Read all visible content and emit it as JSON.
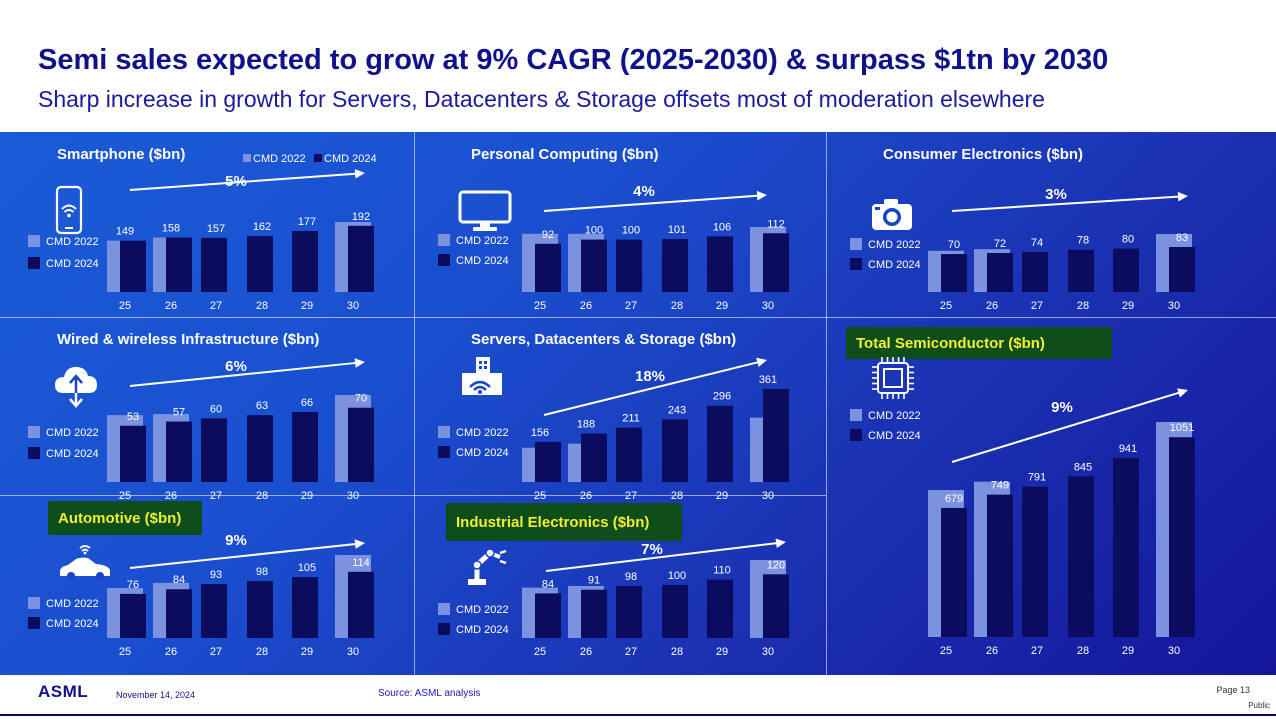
{
  "title": "Semi sales expected to grow at 9% CAGR (2025-2030) & surpass $1tn by 2030",
  "subtitle": "Sharp increase in growth for Servers, Datacenters & Storage offsets most of moderation elsewhere",
  "colors": {
    "cmd2022": "#7b92e0",
    "cmd2024": "#0b0c5e",
    "highlight": "#0d4e1a",
    "highlight_text": "#f2ee33"
  },
  "legend": {
    "cmd2022": "CMD 2022",
    "cmd2024": "CMD 2024"
  },
  "chart_data": [
    {
      "type": "bar",
      "title": "Smartphone ($bn)",
      "icon": "smartphone-icon",
      "cagr": "5%",
      "highlighted": false,
      "categories": [
        "25",
        "26",
        "27",
        "28",
        "29",
        "30"
      ],
      "series": [
        {
          "name": "CMD 2022",
          "values": [
            149,
            158,
            null,
            null,
            null,
            203
          ]
        },
        {
          "name": "CMD 2024",
          "values": [
            149,
            158,
            157,
            162,
            177,
            192
          ]
        }
      ],
      "data_labels": [
        "149",
        "158",
        "157",
        "162",
        "177",
        "192"
      ]
    },
    {
      "type": "bar",
      "title": "Personal Computing ($bn)",
      "icon": "monitor-icon",
      "cagr": "4%",
      "highlighted": false,
      "categories": [
        "25",
        "26",
        "27",
        "28",
        "29",
        "30"
      ],
      "series": [
        {
          "name": "CMD 2022",
          "values": [
            111,
            111,
            null,
            null,
            null,
            124
          ]
        },
        {
          "name": "CMD 2024",
          "values": [
            92,
            100,
            100,
            101,
            106,
            112
          ]
        }
      ],
      "data_labels": [
        "92",
        "100",
        "100",
        "101",
        "106",
        "112"
      ]
    },
    {
      "type": "bar",
      "title": "Consumer Electronics ($bn)",
      "icon": "camera-icon",
      "cagr": "3%",
      "highlighted": false,
      "categories": [
        "25",
        "26",
        "27",
        "28",
        "29",
        "30"
      ],
      "series": [
        {
          "name": "CMD 2022",
          "values": [
            76,
            79,
            null,
            null,
            null,
            107
          ]
        },
        {
          "name": "CMD 2024",
          "values": [
            70,
            72,
            74,
            78,
            80,
            83
          ]
        }
      ],
      "data_labels": [
        "70",
        "72",
        "74",
        "78",
        "80",
        "83"
      ]
    },
    {
      "type": "bar",
      "title": "Wired & wireless Infrastructure ($bn)",
      "icon": "cloud-icon",
      "cagr": "6%",
      "highlighted": false,
      "categories": [
        "25",
        "26",
        "27",
        "28",
        "29",
        "30"
      ],
      "series": [
        {
          "name": "CMD 2022",
          "values": [
            63,
            64,
            null,
            null,
            null,
            82
          ]
        },
        {
          "name": "CMD 2024",
          "values": [
            53,
            57,
            60,
            63,
            66,
            70
          ]
        }
      ],
      "data_labels": [
        "53",
        "57",
        "60",
        "63",
        "66",
        "70"
      ]
    },
    {
      "type": "bar",
      "title": "Servers, Datacenters & Storage ($bn)",
      "icon": "datacenter-icon",
      "cagr": "18%",
      "highlighted": false,
      "categories": [
        "25",
        "26",
        "27",
        "28",
        "29",
        "30"
      ],
      "series": [
        {
          "name": "CMD 2022",
          "values": [
            133,
            149,
            null,
            null,
            null,
            250
          ]
        },
        {
          "name": "CMD 2024",
          "values": [
            156,
            188,
            211,
            243,
            296,
            361
          ]
        }
      ],
      "data_labels": [
        "156",
        "188",
        "211",
        "243",
        "296",
        "361"
      ]
    },
    {
      "type": "bar",
      "title": "Total Semiconductor ($bn)",
      "icon": "chip-icon",
      "cagr": "9%",
      "highlighted": true,
      "categories": [
        "25",
        "26",
        "27",
        "28",
        "29",
        "30"
      ],
      "series": [
        {
          "name": "CMD 2022",
          "values": [
            773,
            817,
            null,
            null,
            null,
            1131
          ]
        },
        {
          "name": "CMD 2024",
          "values": [
            679,
            749,
            791,
            845,
            941,
            1051
          ]
        }
      ],
      "data_labels": [
        "679",
        "749",
        "791",
        "845",
        "941",
        "1051"
      ]
    },
    {
      "type": "bar",
      "title": "Automotive ($bn)",
      "icon": "car-icon",
      "cagr": "9%",
      "highlighted": true,
      "categories": [
        "25",
        "26",
        "27",
        "28",
        "29",
        "30"
      ],
      "series": [
        {
          "name": "CMD 2022",
          "values": [
            86,
            95,
            null,
            null,
            null,
            143
          ]
        },
        {
          "name": "CMD 2024",
          "values": [
            76,
            84,
            93,
            98,
            105,
            114
          ]
        }
      ],
      "data_labels": [
        "76",
        "84",
        "93",
        "98",
        "105",
        "114"
      ]
    },
    {
      "type": "bar",
      "title": "Industrial Electronics ($bn)",
      "icon": "robot-arm-icon",
      "cagr": "7%",
      "highlighted": true,
      "categories": [
        "25",
        "26",
        "27",
        "28",
        "29",
        "30"
      ],
      "series": [
        {
          "name": "CMD 2022",
          "values": [
            95,
            98,
            null,
            null,
            null,
            147
          ]
        },
        {
          "name": "CMD 2024",
          "values": [
            84,
            91,
            98,
            100,
            110,
            120
          ]
        }
      ],
      "data_labels": [
        "84",
        "91",
        "98",
        "100",
        "110",
        "120"
      ]
    }
  ],
  "footer": {
    "logo": "ASML",
    "date": "November 14, 2024",
    "source": "Source: ASML analysis",
    "page": "Page 13",
    "classification": "Public"
  }
}
